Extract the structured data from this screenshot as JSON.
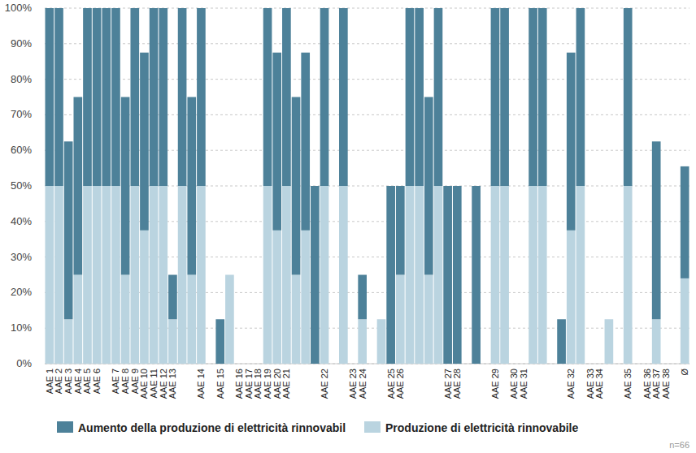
{
  "chart_data": {
    "type": "bar",
    "stacked": true,
    "grid": true,
    "legend": "bottom",
    "annotation": "n=66",
    "categories": [
      "AAE 1",
      "AAE 2",
      "AAE 3",
      "AAE 4",
      "AAE 5",
      "AAE 6",
      null,
      "AAE 7",
      "AAE 8",
      "AAE 9",
      "AAE 10",
      "AAE 11",
      "AAE 12",
      "AAE 13",
      null,
      null,
      "AAE 14",
      null,
      "AAE 15",
      null,
      "AAE 16",
      "AAE 17",
      "AAE 18",
      "AAE 19",
      "AAE 20",
      "AAE 21",
      null,
      null,
      null,
      "AAE 22",
      null,
      null,
      "AAE 23",
      "AAE 24",
      null,
      null,
      "AAE 25",
      "AAE 26",
      null,
      null,
      null,
      null,
      "AAE 27",
      "AAE 28",
      null,
      null,
      null,
      "AAE 29",
      null,
      "AAE 30",
      "AAE 31",
      null,
      null,
      null,
      null,
      "AAE 32",
      null,
      "AAE 33",
      "AAE 34",
      null,
      null,
      "AAE 35",
      null,
      "AAE 36",
      "AAE 37",
      "AAE 38",
      null,
      "Ø"
    ],
    "series": [
      {
        "name": "Aumento della produzione di elettricità rinnovabil",
        "color": "#4d8199",
        "values": [
          50,
          50,
          50,
          50,
          50,
          50,
          50,
          50,
          50,
          50,
          50,
          50,
          50,
          12.5,
          50,
          50,
          50,
          0,
          12.5,
          0,
          0,
          0,
          0,
          50,
          50,
          50,
          50,
          50,
          50,
          50,
          0,
          50,
          0,
          12.5,
          0,
          0,
          50,
          25,
          50,
          50,
          50,
          50,
          50,
          50,
          0,
          50,
          0,
          50,
          50,
          0,
          0,
          50,
          50,
          0,
          12.5,
          50,
          50,
          0,
          0,
          0,
          0,
          50,
          0,
          0,
          50,
          0,
          0,
          31.5
        ]
      },
      {
        "name": "Produzione di elettricità rinnovabile",
        "color": "#bad4e0",
        "values": [
          50,
          50,
          12.5,
          25,
          50,
          50,
          50,
          50,
          25,
          50,
          37.5,
          50,
          50,
          12.5,
          50,
          25,
          50,
          0,
          0,
          25,
          0,
          0,
          0,
          50,
          37.5,
          50,
          25,
          37.5,
          0,
          50,
          0,
          50,
          0,
          12.5,
          0,
          12.5,
          0,
          25,
          50,
          50,
          25,
          50,
          0,
          0,
          0,
          0,
          0,
          50,
          50,
          0,
          0,
          50,
          50,
          0,
          0,
          37.5,
          50,
          0,
          0,
          12.5,
          0,
          50,
          0,
          0,
          12.5,
          0,
          0,
          24
        ]
      }
    ],
    "ylim": [
      0,
      100
    ],
    "yticks": [
      {
        "value": 0,
        "label": "0%"
      },
      {
        "value": 10,
        "label": "10%"
      },
      {
        "value": 20,
        "label": "20%"
      },
      {
        "value": 30,
        "label": "30%"
      },
      {
        "value": 40,
        "label": "40%"
      },
      {
        "value": 50,
        "label": "50%"
      },
      {
        "value": 60,
        "label": "60%"
      },
      {
        "value": 70,
        "label": "70%"
      },
      {
        "value": 80,
        "label": "80%"
      },
      {
        "value": 90,
        "label": "90%"
      },
      {
        "value": 100,
        "label": "100%"
      }
    ]
  }
}
